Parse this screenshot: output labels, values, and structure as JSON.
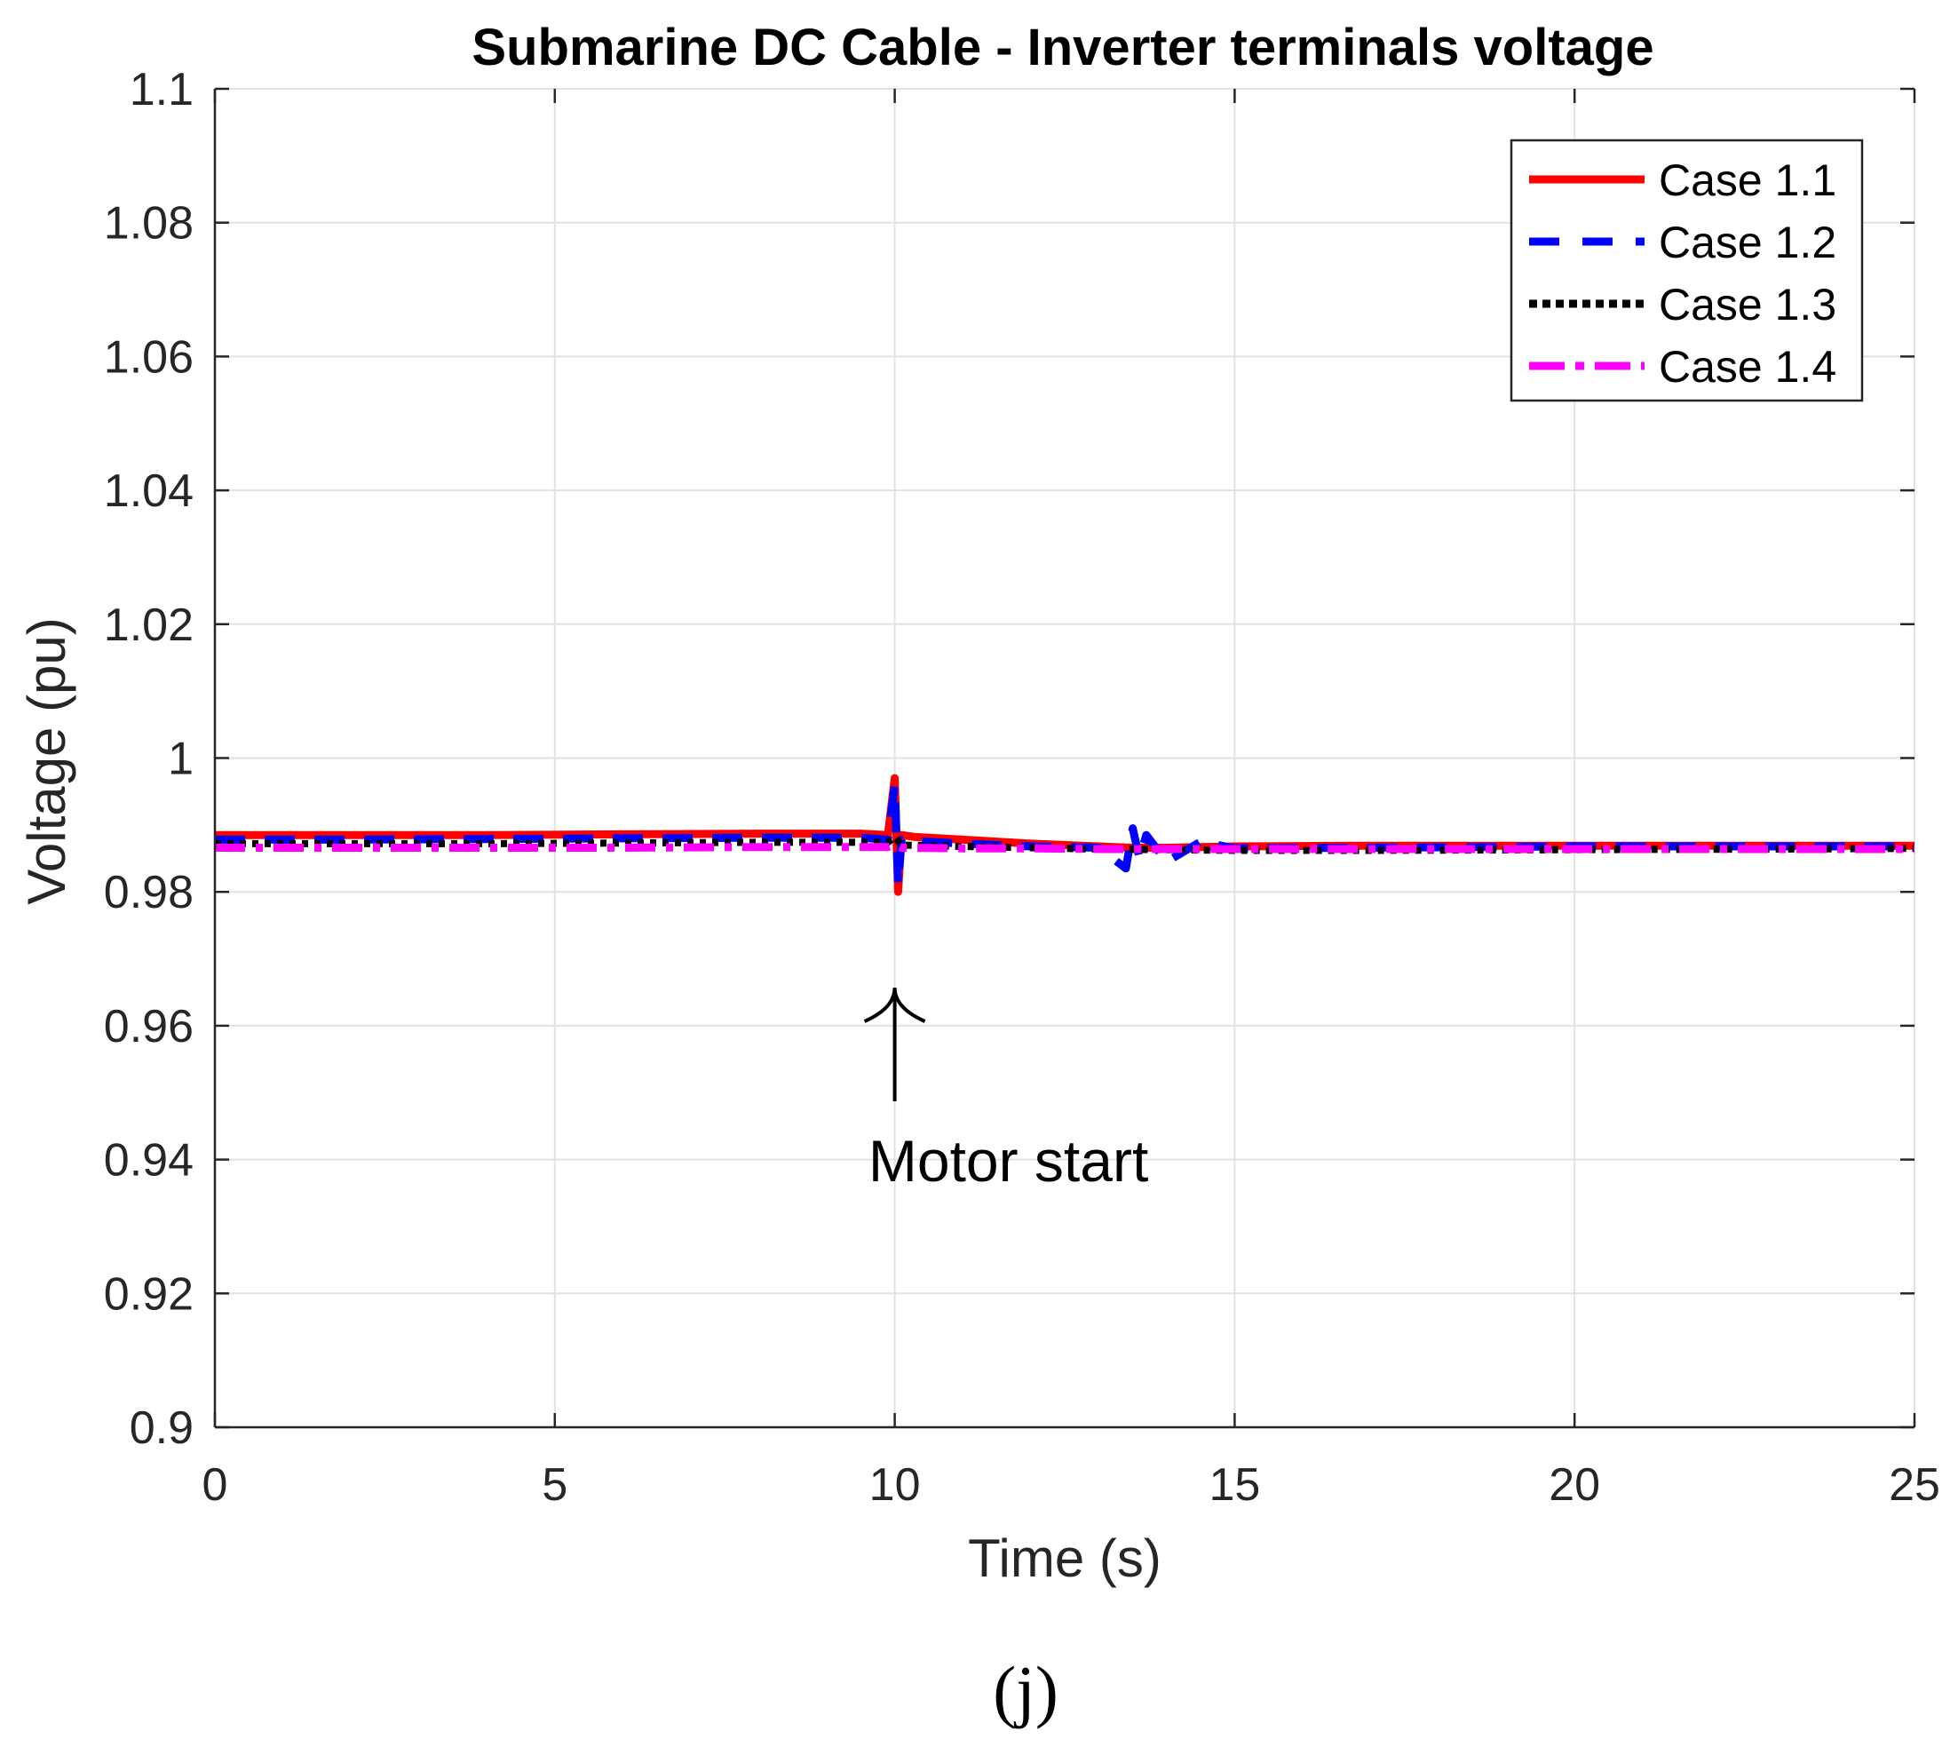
{
  "chart_data": {
    "type": "line",
    "title": "Submarine DC Cable - Inverter terminals voltage",
    "xlabel": "Time (s)",
    "ylabel": "Voltage (pu)",
    "xlim": [
      0,
      25
    ],
    "ylim": [
      0.9,
      1.1
    ],
    "xticks": [
      "0",
      "5",
      "10",
      "15",
      "20",
      "25"
    ],
    "yticks": [
      "0.9",
      "0.92",
      "0.94",
      "0.96",
      "0.98",
      "1",
      "1.02",
      "1.04",
      "1.06",
      "1.08",
      "1.1"
    ],
    "grid": true,
    "legend_position": "top-right",
    "series": [
      {
        "name": "Case 1.1",
        "color": "#ff0000",
        "style": "solid",
        "x": [
          0,
          2,
          4,
          6,
          8,
          9.5,
          9.9,
          10.0,
          10.05,
          10.1,
          10.3,
          11,
          12,
          13,
          13.5,
          14,
          15,
          17,
          20,
          23,
          25
        ],
        "y": [
          0.9885,
          0.9885,
          0.9885,
          0.9886,
          0.9887,
          0.9887,
          0.9885,
          0.997,
          0.98,
          0.9885,
          0.9882,
          0.9878,
          0.9872,
          0.9868,
          0.9866,
          0.9866,
          0.9868,
          0.9869,
          0.9869,
          0.9869,
          0.9869
        ]
      },
      {
        "name": "Case 1.2",
        "color": "#0000ff",
        "style": "dashed",
        "x": [
          0,
          2,
          4,
          6,
          8,
          9.5,
          9.9,
          10.0,
          10.05,
          10.1,
          10.3,
          11,
          12,
          13,
          13.4,
          13.5,
          13.6,
          13.7,
          14,
          14.5,
          15,
          17,
          20,
          23,
          25
        ],
        "y": [
          0.9878,
          0.9878,
          0.9879,
          0.988,
          0.9881,
          0.9881,
          0.9878,
          0.996,
          0.981,
          0.9878,
          0.9876,
          0.9872,
          0.9868,
          0.9866,
          0.9835,
          0.9895,
          0.985,
          0.9885,
          0.9845,
          0.9875,
          0.9865,
          0.9866,
          0.9868,
          0.9868,
          0.9868
        ]
      },
      {
        "name": "Case 1.3",
        "color": "#000000",
        "style": "dotted",
        "x": [
          0,
          2,
          4,
          6,
          8,
          9.9,
          10.0,
          10.1,
          11,
          12,
          13,
          14,
          15,
          17,
          20,
          23,
          25
        ],
        "y": [
          0.9872,
          0.9872,
          0.9872,
          0.9873,
          0.9874,
          0.9874,
          0.9882,
          0.987,
          0.9868,
          0.9866,
          0.9864,
          0.9863,
          0.9862,
          0.9862,
          0.9863,
          0.9864,
          0.9865
        ]
      },
      {
        "name": "Case 1.4",
        "color": "#ff00ff",
        "style": "dashdot",
        "x": [
          0,
          2,
          4,
          6,
          8,
          9.9,
          10.0,
          10.1,
          11,
          12,
          13,
          14,
          15,
          17,
          20,
          23,
          25
        ],
        "y": [
          0.9866,
          0.9866,
          0.9866,
          0.9866,
          0.9867,
          0.9867,
          0.987,
          0.9866,
          0.9865,
          0.9865,
          0.9864,
          0.9864,
          0.9864,
          0.9864,
          0.9864,
          0.9864,
          0.9864
        ]
      }
    ],
    "annotations": [
      {
        "text": "Motor start",
        "x": 10,
        "y": 0.963
      }
    ]
  },
  "caption": "(j)"
}
